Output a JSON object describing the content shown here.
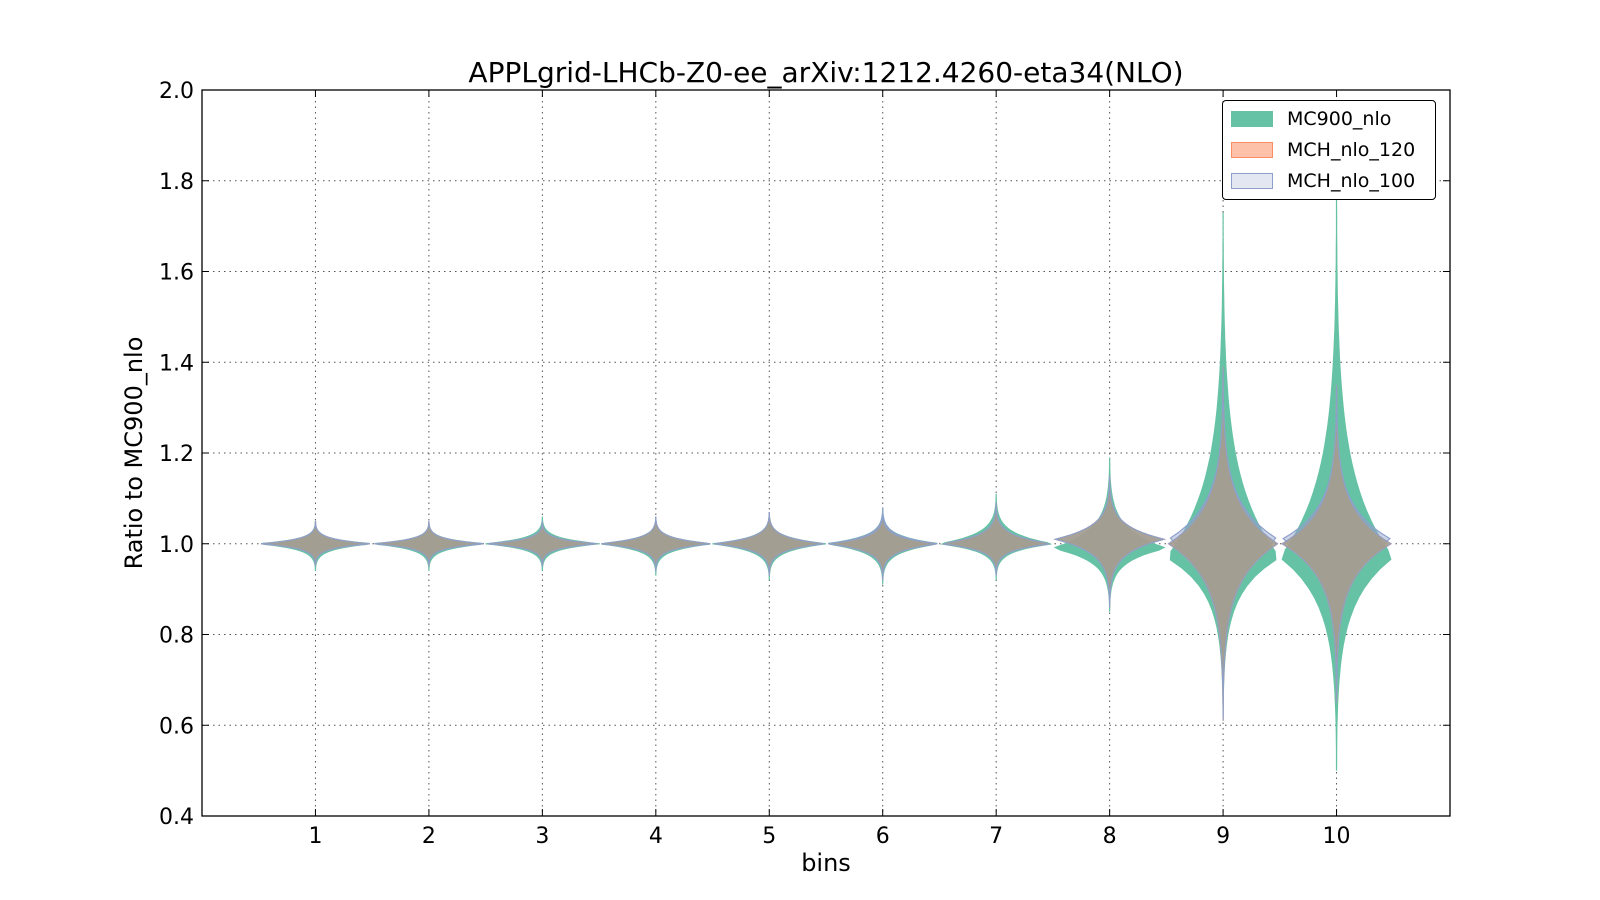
{
  "chart_data": {
    "type": "violin",
    "title": "APPLgrid-LHCb-Z0-ee_arXiv:1212.4260-eta34(NLO)",
    "xlabel": "bins",
    "ylabel": "Ratio to MC900_nlo",
    "ylim": [
      0.4,
      2.0
    ],
    "xlim": [
      0,
      11
    ],
    "grid": true,
    "legend_position": "top-right",
    "yticks": [
      "0.4",
      "0.6",
      "0.8",
      "1.0",
      "1.2",
      "1.4",
      "1.6",
      "1.8",
      "2.0"
    ],
    "categories": [
      "1",
      "2",
      "3",
      "4",
      "5",
      "6",
      "7",
      "8",
      "9",
      "10"
    ],
    "series": [
      {
        "name": "MC900_nlo",
        "color": "#66c2a5",
        "violins": [
          {
            "min": 0.94,
            "max": 1.05,
            "center": 1.0,
            "halfwidth": 0.5
          },
          {
            "min": 0.94,
            "max": 1.05,
            "center": 1.0,
            "halfwidth": 0.5
          },
          {
            "min": 0.94,
            "max": 1.06,
            "center": 1.0,
            "halfwidth": 0.5
          },
          {
            "min": 0.93,
            "max": 1.06,
            "center": 1.0,
            "halfwidth": 0.5
          },
          {
            "min": 0.92,
            "max": 1.07,
            "center": 1.0,
            "halfwidth": 0.5
          },
          {
            "min": 0.91,
            "max": 1.08,
            "center": 1.0,
            "halfwidth": 0.5
          },
          {
            "min": 0.92,
            "max": 1.11,
            "center": 1.0,
            "halfwidth": 0.5
          },
          {
            "min": 0.85,
            "max": 1.19,
            "center": 0.99,
            "halfwidth": 0.5
          },
          {
            "min": 0.61,
            "max": 1.73,
            "center": 0.97,
            "halfwidth": 0.5
          },
          {
            "min": 0.5,
            "max": 1.77,
            "center": 0.97,
            "halfwidth": 0.5
          }
        ]
      },
      {
        "name": "MCH_nlo_120",
        "color": "#fc8d62",
        "violins": [
          {
            "min": 0.95,
            "max": 1.05,
            "center": 1.0,
            "halfwidth": 0.48
          },
          {
            "min": 0.95,
            "max": 1.05,
            "center": 1.0,
            "halfwidth": 0.48
          },
          {
            "min": 0.95,
            "max": 1.05,
            "center": 1.0,
            "halfwidth": 0.48
          },
          {
            "min": 0.94,
            "max": 1.06,
            "center": 1.0,
            "halfwidth": 0.48
          },
          {
            "min": 0.93,
            "max": 1.07,
            "center": 1.0,
            "halfwidth": 0.48
          },
          {
            "min": 0.92,
            "max": 1.07,
            "center": 1.0,
            "halfwidth": 0.48
          },
          {
            "min": 0.93,
            "max": 1.09,
            "center": 1.0,
            "halfwidth": 0.48
          },
          {
            "min": 0.86,
            "max": 1.15,
            "center": 1.01,
            "halfwidth": 0.48
          },
          {
            "min": 0.61,
            "max": 1.39,
            "center": 1.0,
            "halfwidth": 0.48
          },
          {
            "min": 0.65,
            "max": 1.35,
            "center": 1.0,
            "halfwidth": 0.48
          }
        ]
      },
      {
        "name": "MCH_nlo_100",
        "color": "#8da0cb",
        "violins": [
          {
            "min": 0.95,
            "max": 1.05,
            "center": 1.0,
            "halfwidth": 0.48
          },
          {
            "min": 0.95,
            "max": 1.05,
            "center": 1.0,
            "halfwidth": 0.48
          },
          {
            "min": 0.95,
            "max": 1.05,
            "center": 1.0,
            "halfwidth": 0.48
          },
          {
            "min": 0.94,
            "max": 1.06,
            "center": 1.0,
            "halfwidth": 0.48
          },
          {
            "min": 0.93,
            "max": 1.07,
            "center": 1.0,
            "halfwidth": 0.48
          },
          {
            "min": 0.92,
            "max": 1.08,
            "center": 1.0,
            "halfwidth": 0.48
          },
          {
            "min": 0.93,
            "max": 1.09,
            "center": 1.0,
            "halfwidth": 0.48
          },
          {
            "min": 0.86,
            "max": 1.15,
            "center": 1.01,
            "halfwidth": 0.48
          },
          {
            "min": 0.62,
            "max": 1.38,
            "center": 1.01,
            "halfwidth": 0.48
          },
          {
            "min": 0.66,
            "max": 1.34,
            "center": 1.01,
            "halfwidth": 0.48
          }
        ]
      }
    ]
  }
}
